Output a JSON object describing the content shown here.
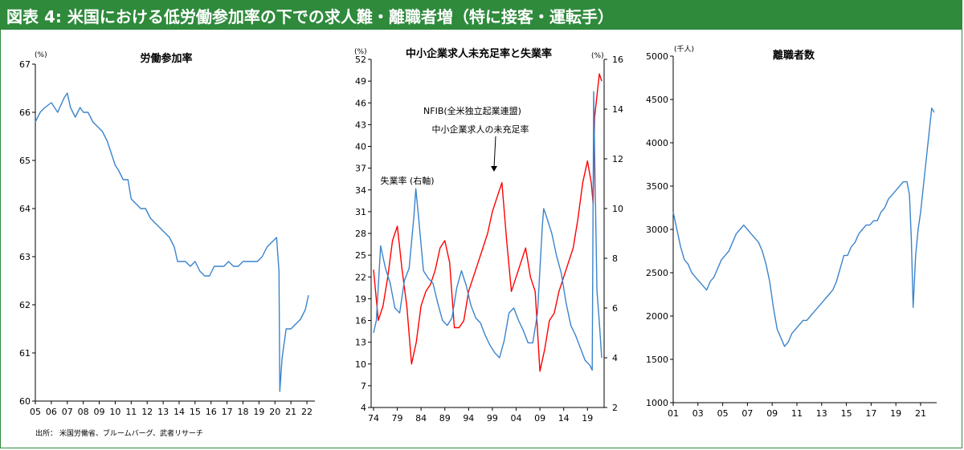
{
  "figure_title": "図表 4: 米国における低労働参加率の下での求人難・離職者増（特に接客・運転手）",
  "source_note": "出所： 米国労働省、ブルームバーグ、武者リサーチ",
  "colors": {
    "title_bg": "#2f8a3c",
    "title_text": "#ffffff",
    "line_blue": "#3b84cc",
    "line_red": "#ff0000",
    "frame": "#2f8a3c"
  },
  "chart_data": [
    {
      "type": "line",
      "title": "労働参加率",
      "y_unit": "(%)",
      "ylim": [
        60,
        67
      ],
      "yticks": [
        "60",
        "61",
        "62",
        "63",
        "64",
        "65",
        "66",
        "67"
      ],
      "xticks": [
        "05",
        "06",
        "07",
        "08",
        "09",
        "10",
        "11",
        "12",
        "13",
        "14",
        "15",
        "16",
        "17",
        "18",
        "19",
        "20",
        "21",
        "22"
      ],
      "xrange": [
        2005.0,
        2022.5
      ],
      "series": [
        {
          "color": "#3b84cc",
          "x": [
            2005.0,
            2005.3,
            2005.6,
            2006.0,
            2006.4,
            2006.8,
            2007.0,
            2007.2,
            2007.5,
            2007.8,
            2008.0,
            2008.3,
            2008.6,
            2008.9,
            2009.2,
            2009.5,
            2009.8,
            2010.0,
            2010.2,
            2010.5,
            2010.8,
            2011.0,
            2011.3,
            2011.6,
            2011.9,
            2012.2,
            2012.5,
            2012.8,
            2013.1,
            2013.4,
            2013.7,
            2013.9,
            2014.1,
            2014.4,
            2014.7,
            2015.0,
            2015.3,
            2015.6,
            2015.9,
            2016.2,
            2016.5,
            2016.8,
            2017.1,
            2017.4,
            2017.7,
            2018.0,
            2018.3,
            2018.6,
            2018.9,
            2019.2,
            2019.5,
            2019.8,
            2020.1,
            2020.25,
            2020.3,
            2020.45,
            2020.7,
            2021.0,
            2021.3,
            2021.6,
            2021.9,
            2022.1
          ],
          "y": [
            65.8,
            66.0,
            66.1,
            66.2,
            66.0,
            66.3,
            66.4,
            66.1,
            65.9,
            66.1,
            66.0,
            66.0,
            65.8,
            65.7,
            65.6,
            65.4,
            65.1,
            64.9,
            64.8,
            64.6,
            64.6,
            64.2,
            64.1,
            64.0,
            64.0,
            63.8,
            63.7,
            63.6,
            63.5,
            63.4,
            63.2,
            62.9,
            62.9,
            62.9,
            62.8,
            62.9,
            62.7,
            62.6,
            62.6,
            62.8,
            62.8,
            62.8,
            62.9,
            62.8,
            62.8,
            62.9,
            62.9,
            62.9,
            62.9,
            63.0,
            63.2,
            63.3,
            63.4,
            62.7,
            60.2,
            60.9,
            61.5,
            61.5,
            61.6,
            61.7,
            61.9,
            62.2
          ]
        }
      ]
    },
    {
      "type": "line",
      "title": "中小企業求人未充足率と失業率",
      "y_unit": "(%)",
      "y2_unit": "(%)",
      "ylim": [
        4,
        52
      ],
      "yticks": [
        "4",
        "7",
        "10",
        "13",
        "16",
        "19",
        "22",
        "25",
        "28",
        "31",
        "34",
        "37",
        "40",
        "43",
        "46",
        "49",
        "52"
      ],
      "y2lim": [
        2,
        16
      ],
      "y2ticks": [
        "2",
        "4",
        "6",
        "8",
        "10",
        "12",
        "14",
        "16"
      ],
      "xticks": [
        "74",
        "79",
        "84",
        "89",
        "94",
        "99",
        "04",
        "09",
        "14",
        "19"
      ],
      "xrange": [
        1973.5,
        2022.5
      ],
      "annotations": [
        "NFIB(全米独立起業連盟)",
        "中小企業求人の未充足率",
        "失業率 (右軸)"
      ],
      "series": [
        {
          "name": "NFIB(全米独立起業連盟)",
          "color": "#ff0000",
          "axis": "left",
          "x": [
            1974,
            1975,
            1976,
            1977,
            1978,
            1979,
            1980,
            1981,
            1982,
            1983,
            1984,
            1985,
            1986,
            1987,
            1988,
            1989,
            1990,
            1991,
            1992,
            1993,
            1994,
            1995,
            1996,
            1997,
            1998,
            1999,
            2000,
            2001,
            2002,
            2003,
            2004,
            2005,
            2006,
            2007,
            2008,
            2009,
            2010,
            2011,
            2012,
            2013,
            2014,
            2015,
            2016,
            2017,
            2018,
            2019,
            2019.8,
            2020.2,
            2020.5,
            2021,
            2021.5,
            2022
          ],
          "y": [
            23,
            16,
            18,
            22,
            27,
            29,
            23,
            18,
            10,
            13,
            18,
            20,
            21,
            23,
            26,
            27,
            24,
            15,
            15,
            16,
            20,
            22,
            24,
            26,
            28,
            31,
            33,
            35,
            27,
            20,
            22,
            24,
            26,
            22,
            20,
            9,
            12,
            16,
            17,
            20,
            22,
            24,
            26,
            30,
            35,
            38,
            35,
            32,
            44,
            47,
            50,
            49
          ]
        },
        {
          "name": "失業率 (右軸)",
          "color": "#3b84cc",
          "axis": "right",
          "x": [
            1974,
            1974.6,
            1975.5,
            1976.5,
            1977.5,
            1978.5,
            1979.5,
            1980.5,
            1981.5,
            1982.5,
            1982.9,
            1983.5,
            1984.5,
            1985.5,
            1986.5,
            1987.5,
            1988.5,
            1989.5,
            1990.5,
            1991.5,
            1992.5,
            1993.5,
            1994.5,
            1995.5,
            1996.5,
            1997.5,
            1998.5,
            1999.5,
            2000.5,
            2001.5,
            2002.5,
            2003.5,
            2004.5,
            2005.5,
            2006.5,
            2007.5,
            2008.5,
            2009.5,
            2009.8,
            2010.5,
            2011.5,
            2012.5,
            2013.5,
            2014.5,
            2015.5,
            2016.5,
            2017.5,
            2018.5,
            2019.5,
            2020.0,
            2020.3,
            2020.6,
            2021.0,
            2021.5,
            2022.0
          ],
          "y": [
            5.0,
            5.5,
            8.5,
            7.6,
            7.0,
            6.0,
            5.8,
            7.1,
            7.6,
            9.7,
            10.8,
            9.6,
            7.5,
            7.2,
            7.0,
            6.2,
            5.5,
            5.3,
            5.6,
            6.8,
            7.5,
            6.9,
            6.1,
            5.6,
            5.4,
            4.9,
            4.5,
            4.2,
            4.0,
            4.7,
            5.8,
            6.0,
            5.5,
            5.1,
            4.6,
            4.6,
            5.8,
            9.3,
            10.0,
            9.6,
            9.0,
            8.1,
            7.4,
            6.2,
            5.3,
            4.9,
            4.4,
            3.9,
            3.7,
            3.5,
            14.7,
            11.1,
            6.7,
            5.4,
            4.0
          ]
        }
      ]
    },
    {
      "type": "line",
      "title": "離職者数",
      "y_unit": "(千人)",
      "ylim": [
        1000,
        5000
      ],
      "yticks": [
        "1000",
        "1500",
        "2000",
        "2500",
        "3000",
        "3500",
        "4000",
        "4500",
        "5000"
      ],
      "xticks": [
        "01",
        "03",
        "05",
        "07",
        "09",
        "11",
        "13",
        "15",
        "17",
        "19",
        "21"
      ],
      "xrange": [
        2001.0,
        2022.3
      ],
      "series": [
        {
          "color": "#3b84cc",
          "x": [
            2001.0,
            2001.3,
            2001.6,
            2001.9,
            2002.2,
            2002.5,
            2002.8,
            2003.1,
            2003.4,
            2003.7,
            2004.0,
            2004.3,
            2004.6,
            2004.9,
            2005.2,
            2005.5,
            2005.8,
            2006.1,
            2006.4,
            2006.7,
            2007.0,
            2007.3,
            2007.6,
            2007.9,
            2008.2,
            2008.5,
            2008.8,
            2009.1,
            2009.4,
            2009.7,
            2010.0,
            2010.3,
            2010.6,
            2010.9,
            2011.2,
            2011.5,
            2011.8,
            2012.1,
            2012.4,
            2012.7,
            2013.0,
            2013.3,
            2013.6,
            2013.9,
            2014.2,
            2014.5,
            2014.8,
            2015.1,
            2015.4,
            2015.7,
            2016.0,
            2016.3,
            2016.6,
            2016.9,
            2017.2,
            2017.5,
            2017.8,
            2018.1,
            2018.4,
            2018.7,
            2019.0,
            2019.3,
            2019.6,
            2019.9,
            2020.1,
            2020.25,
            2020.4,
            2020.6,
            2020.8,
            2021.0,
            2021.3,
            2021.6,
            2021.9,
            2022.1
          ],
          "y": [
            3200,
            3000,
            2800,
            2650,
            2600,
            2500,
            2450,
            2400,
            2350,
            2300,
            2400,
            2450,
            2550,
            2650,
            2700,
            2750,
            2850,
            2950,
            3000,
            3050,
            3000,
            2950,
            2900,
            2850,
            2750,
            2600,
            2400,
            2100,
            1850,
            1750,
            1650,
            1700,
            1800,
            1850,
            1900,
            1950,
            1950,
            2000,
            2050,
            2100,
            2150,
            2200,
            2250,
            2300,
            2400,
            2550,
            2700,
            2700,
            2800,
            2850,
            2950,
            3000,
            3050,
            3050,
            3100,
            3100,
            3200,
            3250,
            3350,
            3400,
            3450,
            3500,
            3550,
            3550,
            3400,
            2900,
            2100,
            2700,
            3000,
            3200,
            3600,
            4000,
            4400,
            4350
          ]
        }
      ]
    }
  ]
}
